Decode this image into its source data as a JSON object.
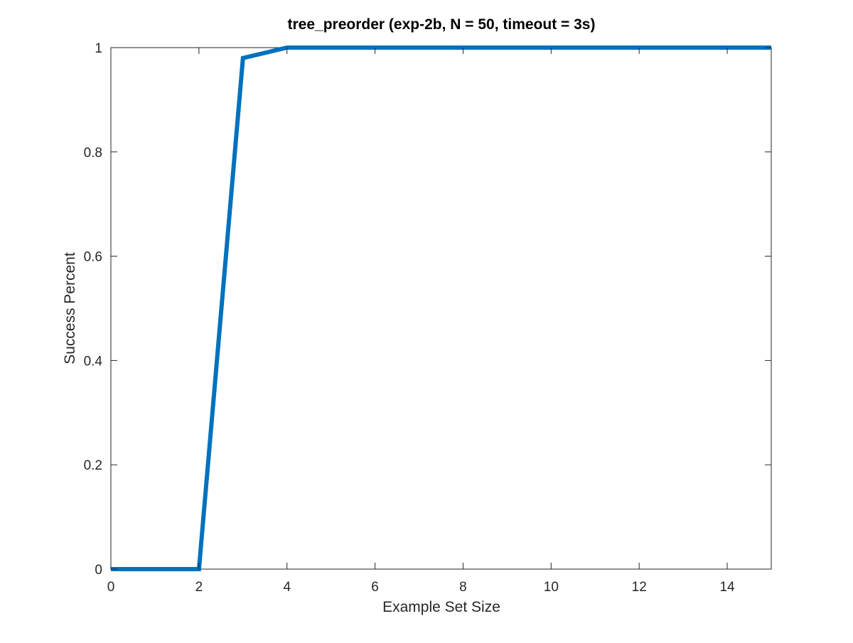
{
  "chart_data": {
    "type": "line",
    "title": "tree_preorder (exp-2b, N = 50, timeout = 3s)",
    "xlabel": "Example Set Size",
    "ylabel": "Success Percent",
    "xlim": [
      0,
      15
    ],
    "ylim": [
      0,
      1
    ],
    "xticks": [
      0,
      2,
      4,
      6,
      8,
      10,
      12,
      14
    ],
    "yticks": [
      0,
      0.2,
      0.4,
      0.6,
      0.8,
      1
    ],
    "xtick_labels": [
      "0",
      "2",
      "4",
      "6",
      "8",
      "10",
      "12",
      "14"
    ],
    "ytick_labels": [
      "0",
      "0.2",
      "0.4",
      "0.6",
      "0.8",
      "1"
    ],
    "grid": false,
    "legend": "none",
    "series": [
      {
        "color": "#0072BD",
        "x": [
          0,
          1,
          2,
          3,
          4,
          5,
          6,
          7,
          8,
          9,
          10,
          11,
          12,
          13,
          14,
          15
        ],
        "values": [
          0,
          0,
          0,
          0.98,
          1,
          1,
          1,
          1,
          1,
          1,
          1,
          1,
          1,
          1,
          1,
          1
        ]
      }
    ]
  }
}
